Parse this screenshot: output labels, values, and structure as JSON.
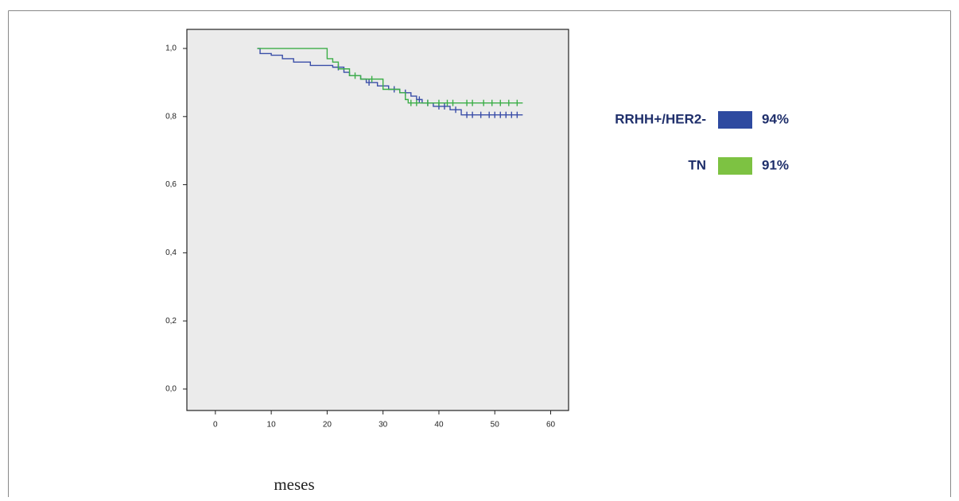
{
  "chart_data": {
    "type": "step",
    "x_label": "meses",
    "xlim": [
      -5.1,
      63.2
    ],
    "xticks": [
      0,
      10,
      20,
      30,
      40,
      50,
      60
    ],
    "ylim": [
      -0.063,
      1.056
    ],
    "yticks": [
      {
        "value": 0,
        "label": "0,0"
      },
      {
        "value": 0.2,
        "label": "0,2"
      },
      {
        "value": 0.4,
        "label": "0,4"
      },
      {
        "value": 0.6,
        "label": "0,6"
      },
      {
        "value": 0.8,
        "label": "0,8"
      },
      {
        "value": 1,
        "label": "1,0"
      }
    ],
    "series": [
      {
        "name": "RRHH+/HER2-",
        "summary_label": "94%",
        "color": "#3a4ea8",
        "legend_color": "#2e4aa0",
        "x": [
          7.5,
          8,
          10,
          12,
          14,
          17,
          21,
          23,
          24,
          26,
          27,
          29,
          31,
          33,
          35,
          36,
          37,
          39,
          42,
          44,
          55
        ],
        "values": [
          1,
          0.985,
          0.98,
          0.97,
          0.96,
          0.95,
          0.945,
          0.93,
          0.92,
          0.91,
          0.9,
          0.89,
          0.88,
          0.87,
          0.86,
          0.85,
          0.84,
          0.83,
          0.82,
          0.805,
          0.805
        ],
        "censored_x": [
          22,
          27.5,
          32,
          34,
          36.5,
          38,
          40,
          41,
          43,
          45,
          46,
          47.5,
          49,
          50,
          51,
          52,
          53,
          54
        ],
        "censored_y": [
          0.945,
          0.9,
          0.88,
          0.87,
          0.85,
          0.84,
          0.83,
          0.83,
          0.82,
          0.805,
          0.805,
          0.805,
          0.805,
          0.805,
          0.805,
          0.805,
          0.805,
          0.805
        ]
      },
      {
        "name": "TN",
        "summary_label": "91%",
        "color": "#3cae48",
        "legend_color": "#7dc242",
        "x": [
          7.5,
          20,
          21,
          22,
          24,
          26,
          30,
          33,
          34,
          34.5,
          55
        ],
        "values": [
          1,
          0.97,
          0.96,
          0.94,
          0.92,
          0.91,
          0.88,
          0.87,
          0.85,
          0.84,
          0.84
        ],
        "censored_x": [
          25,
          28,
          35,
          36,
          38,
          40,
          41.5,
          42.5,
          45,
          46,
          48,
          49.5,
          51,
          52.5,
          54
        ],
        "censored_y": [
          0.92,
          0.91,
          0.84,
          0.84,
          0.84,
          0.84,
          0.84,
          0.84,
          0.84,
          0.84,
          0.84,
          0.84,
          0.84,
          0.84,
          0.84
        ]
      }
    ]
  }
}
